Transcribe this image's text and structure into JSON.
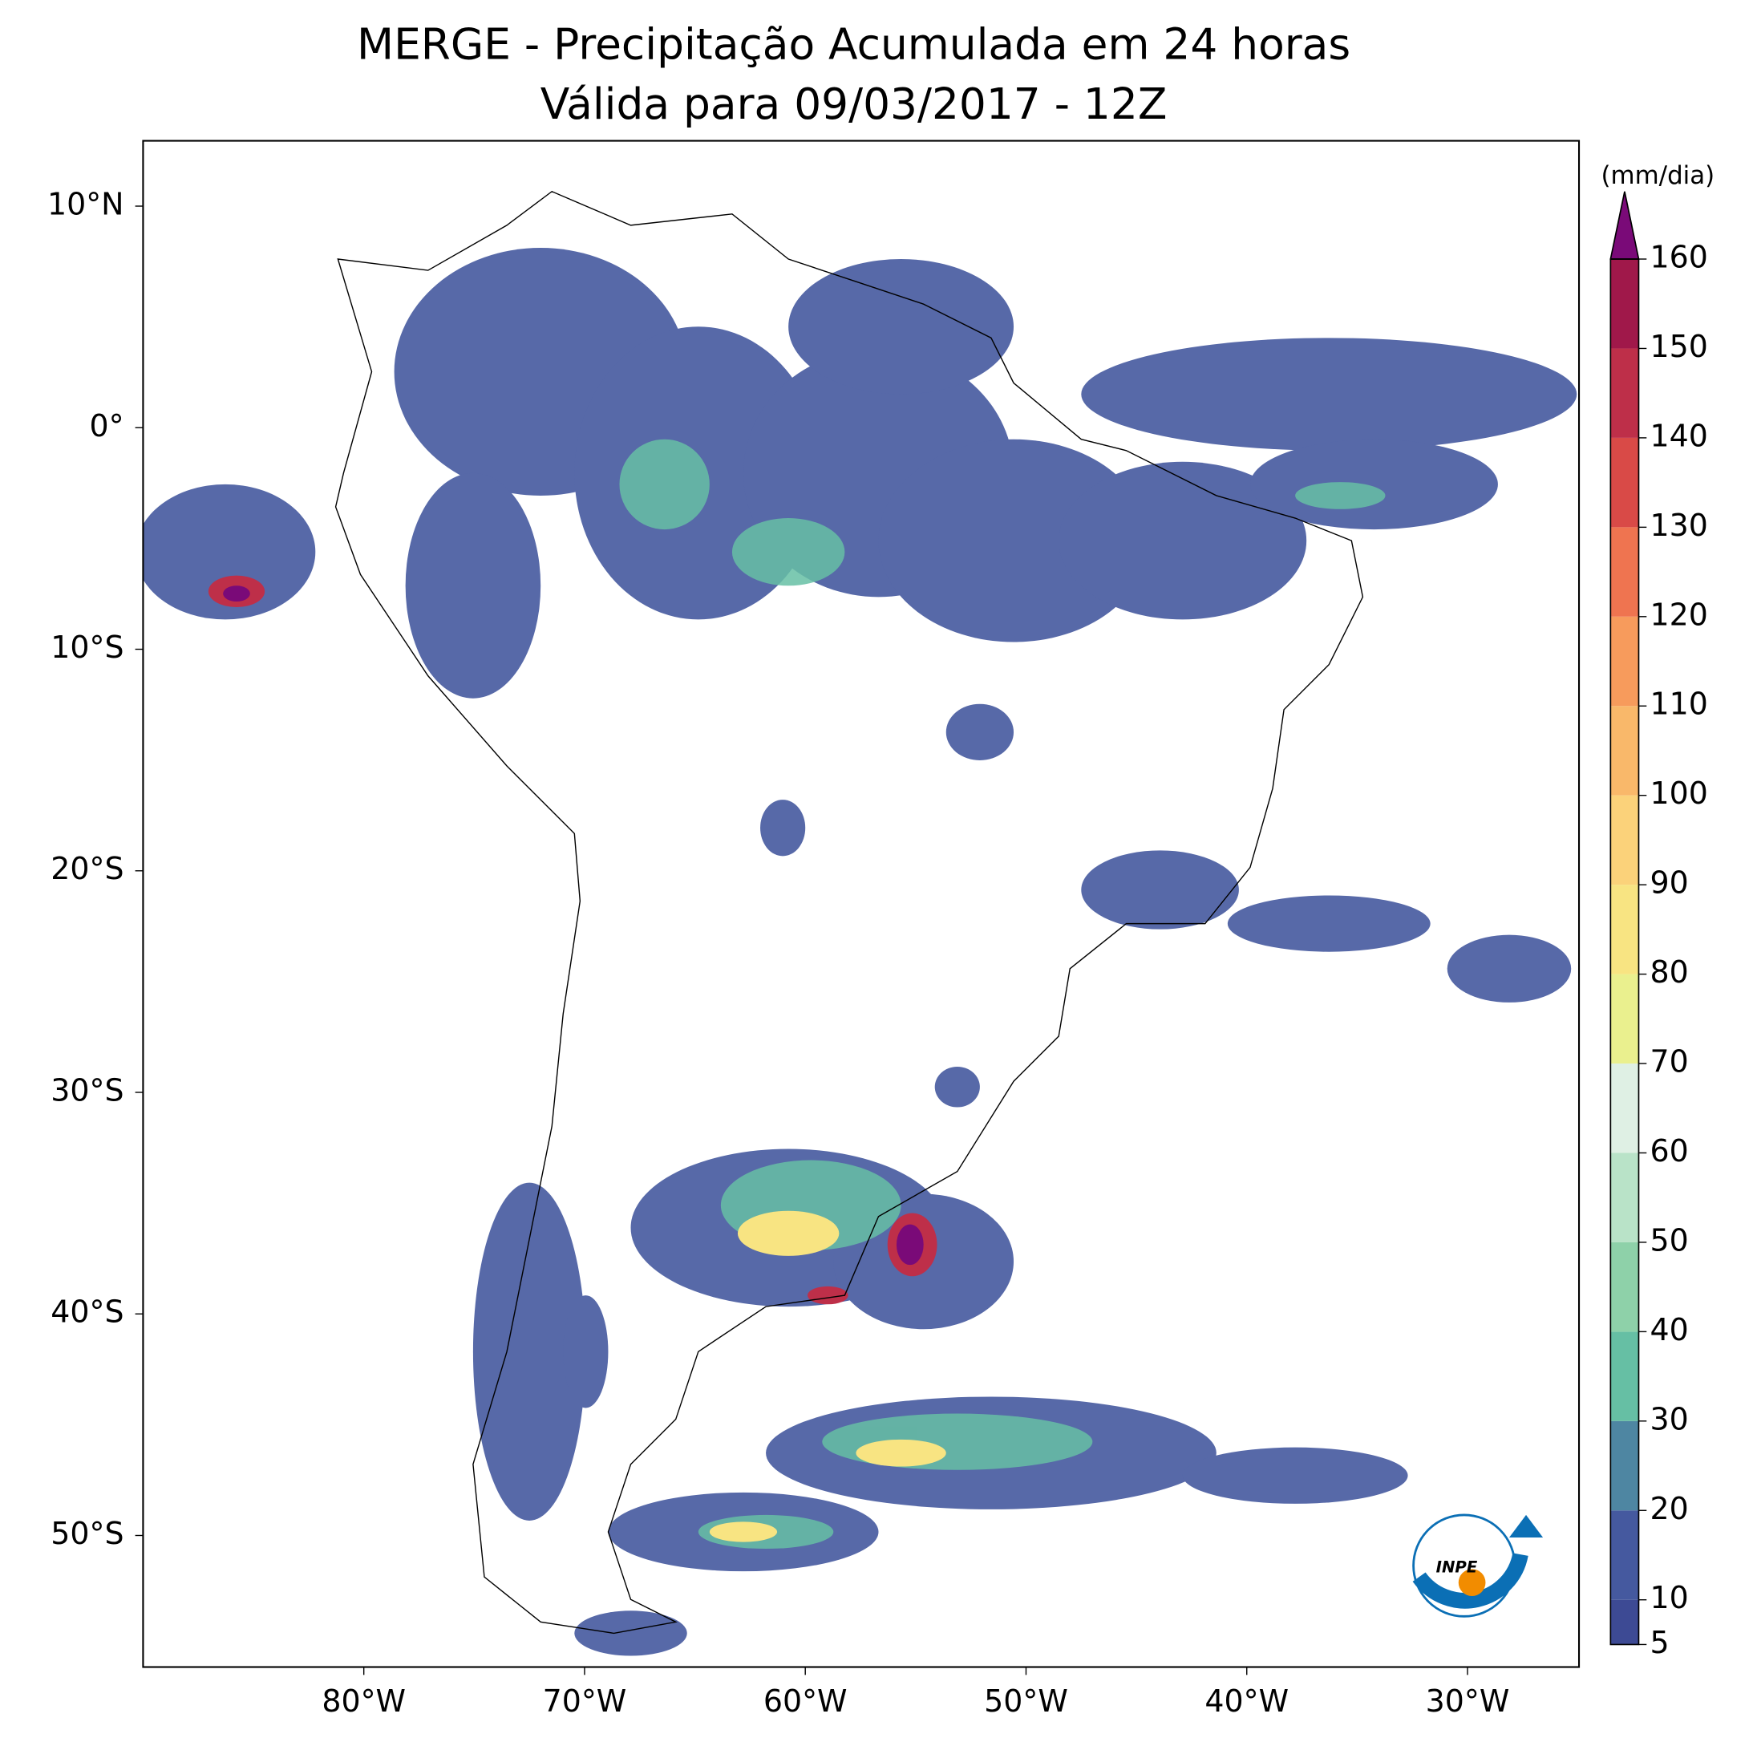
{
  "map": {
    "title": [
      "MERGE - Precipitação Acumulada em 24 horas",
      "Válida para 09/03/2017 - 12Z"
    ],
    "lon_ticks": [
      {
        "value": -80,
        "label": "80°W"
      },
      {
        "value": -70,
        "label": "70°W"
      },
      {
        "value": -60,
        "label": "60°W"
      },
      {
        "value": -50,
        "label": "50°W"
      },
      {
        "value": -40,
        "label": "40°W"
      },
      {
        "value": -30,
        "label": "30°W"
      }
    ],
    "lat_ticks": [
      {
        "value": 10,
        "label": "10°N"
      },
      {
        "value": 0,
        "label": "0°"
      },
      {
        "value": -10,
        "label": "10°S"
      },
      {
        "value": -20,
        "label": "20°S"
      },
      {
        "value": -30,
        "label": "30°S"
      },
      {
        "value": -40,
        "label": "40°S"
      },
      {
        "value": -50,
        "label": "50°S"
      }
    ],
    "colorbar": {
      "unit": "(mm/dia)",
      "ticks": [
        5,
        10,
        20,
        30,
        40,
        50,
        60,
        70,
        80,
        90,
        100,
        110,
        120,
        130,
        140,
        150,
        160
      ],
      "colors": [
        "#3d4a94",
        "#45599f",
        "#4e86a2",
        "#66bfa4",
        "#8ed1a9",
        "#b9e3c8",
        "#dff0e4",
        "#eaf08e",
        "#f8e482",
        "#fbd27a",
        "#f9b86a",
        "#f79b5c",
        "#ef7450",
        "#d94a47",
        "#be2f49",
        "#a0184a"
      ],
      "extend_color": "#7a0a78"
    },
    "logo": "INPE"
  }
}
